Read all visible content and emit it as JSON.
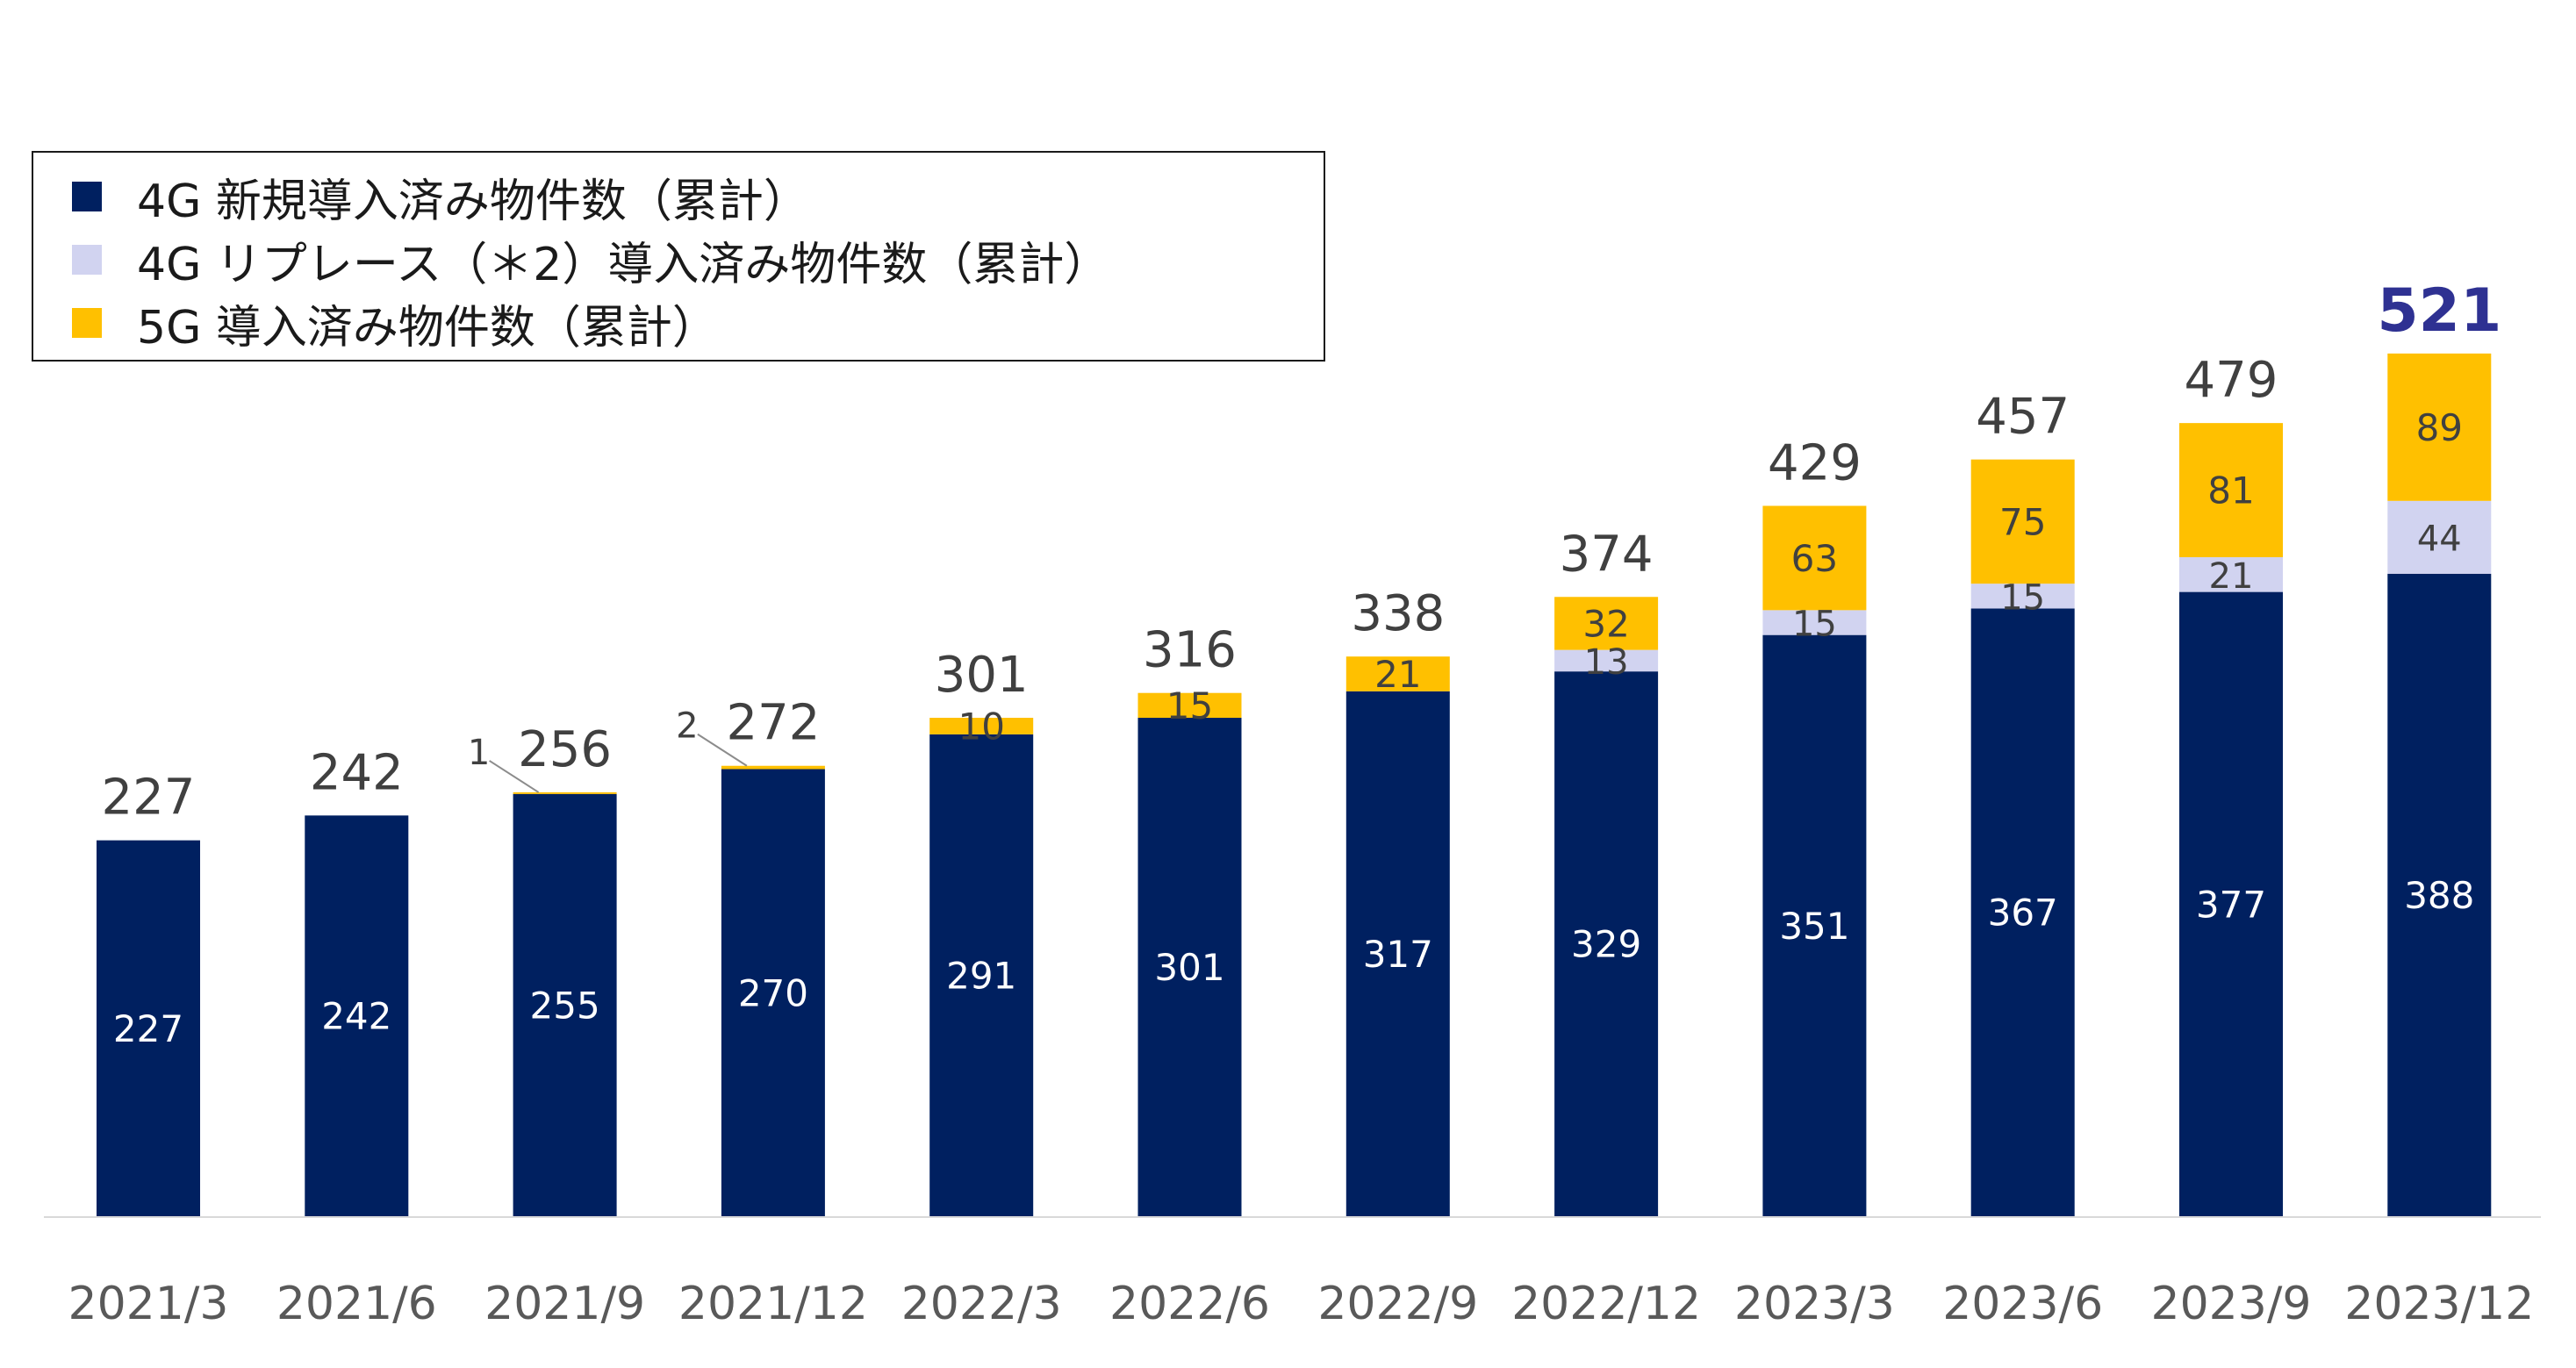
{
  "chart_data": {
    "type": "bar",
    "stacked": true,
    "categories": [
      "2021/3",
      "2021/6",
      "2021/9",
      "2021/12",
      "2022/3",
      "2022/6",
      "2022/9",
      "2022/12",
      "2023/3",
      "2023/6",
      "2023/9",
      "2023/12"
    ],
    "series": [
      {
        "name": "4G 新規導入済み物件数（累計）",
        "color": "#002060",
        "values": [
          227,
          242,
          255,
          270,
          291,
          301,
          317,
          329,
          351,
          367,
          377,
          388
        ]
      },
      {
        "name": "4G リプレース（＊2）導入済み物件数（累計）",
        "color": "#D1D3F0",
        "values": [
          0,
          0,
          0,
          0,
          0,
          0,
          0,
          13,
          15,
          15,
          21,
          44
        ]
      },
      {
        "name": "5G 導入済み物件数（累計）",
        "color": "#FFC000",
        "values": [
          0,
          0,
          1,
          2,
          10,
          15,
          21,
          32,
          63,
          75,
          81,
          89
        ]
      }
    ],
    "totals": [
      227,
      242,
      256,
      272,
      301,
      316,
      338,
      374,
      429,
      457,
      479,
      521
    ],
    "ylim": [
      0,
      580
    ],
    "grid": false,
    "legend_position": "top-left",
    "highlight_total_color": "#2E3192",
    "title": "",
    "xlabel": "",
    "ylabel": ""
  }
}
